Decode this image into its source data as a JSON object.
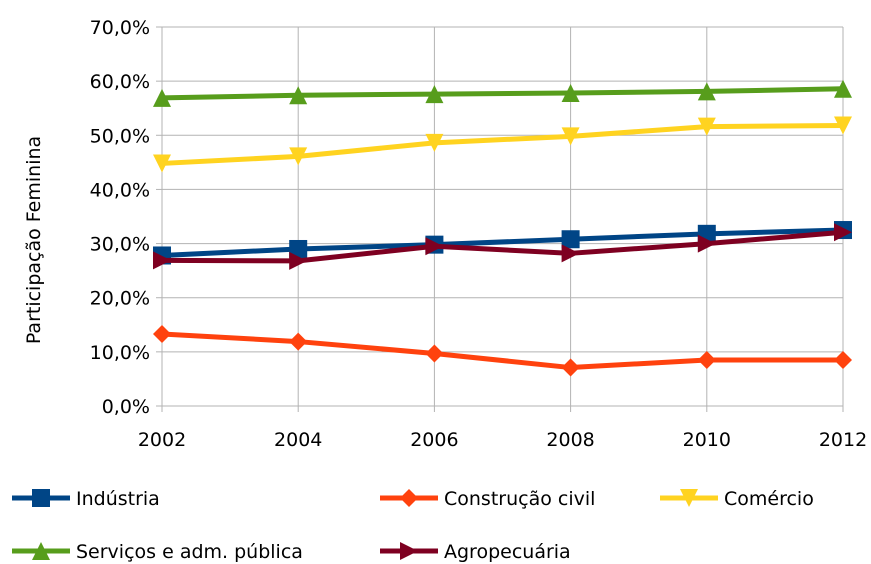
{
  "chart_data": {
    "type": "line",
    "title": "",
    "xlabel": "",
    "ylabel": "Participação Feminina",
    "x": [
      "2002",
      "2004",
      "2006",
      "2008",
      "2010",
      "2012"
    ],
    "x_tick_labels": [
      "2002",
      "2004",
      "2006",
      "2008",
      "2010",
      "2012"
    ],
    "y_tick_labels": [
      "0,0%",
      "10,0%",
      "20,0%",
      "30,0%",
      "40,0%",
      "50,0%",
      "60,0%",
      "70,0%"
    ],
    "ylim": [
      0,
      70
    ],
    "y_unit": "%",
    "grid": true,
    "legend_position": "bottom",
    "series": [
      {
        "name": "Indústria",
        "color": "#004586",
        "marker": "square",
        "values": [
          27.8,
          29.0,
          29.8,
          30.8,
          31.8,
          32.5
        ]
      },
      {
        "name": "Construção civil",
        "color": "#ff420e",
        "marker": "diamond",
        "values": [
          13.3,
          11.9,
          9.7,
          7.1,
          8.5,
          8.5
        ]
      },
      {
        "name": "Comércio",
        "color": "#ffd320",
        "marker": "triangle-down",
        "values": [
          44.8,
          46.1,
          48.6,
          49.8,
          51.6,
          51.8
        ]
      },
      {
        "name": "Serviços e adm. pública",
        "color": "#579d1c",
        "marker": "triangle-up",
        "values": [
          56.9,
          57.4,
          57.6,
          57.8,
          58.1,
          58.6
        ]
      },
      {
        "name": "Agropecuária",
        "color": "#7e0021",
        "marker": "arrow-right",
        "values": [
          26.9,
          26.8,
          29.5,
          28.2,
          30.0,
          32.1
        ]
      }
    ]
  }
}
